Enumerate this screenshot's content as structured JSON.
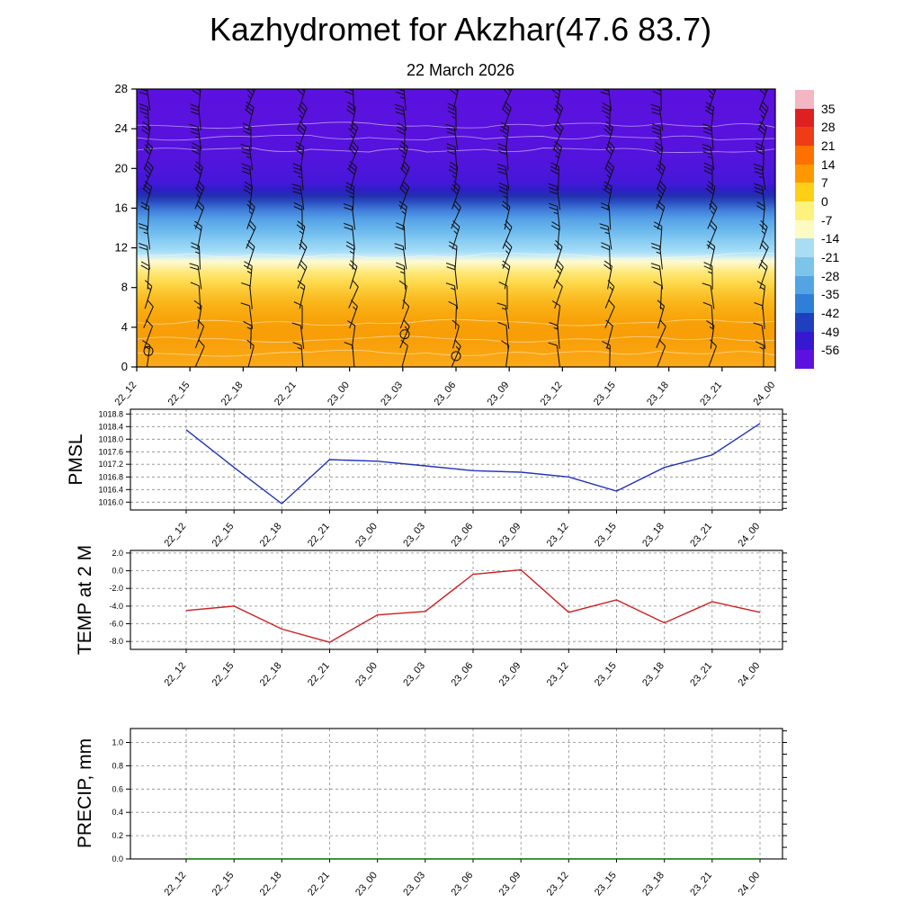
{
  "header": {
    "title": "Kazhydromet for Akzhar(47.6 83.7)",
    "subtitle": "22 March 2026"
  },
  "time_labels": [
    "22_12",
    "22_15",
    "22_18",
    "22_21",
    "23_00",
    "23_03",
    "23_06",
    "23_09",
    "23_12",
    "23_15",
    "23_18",
    "23_21",
    "24_00"
  ],
  "chart_data": [
    {
      "type": "heatmap",
      "name": "temperature-height-cross-section",
      "x": [
        "22_12",
        "22_15",
        "22_18",
        "22_21",
        "23_00",
        "23_03",
        "23_06",
        "23_09",
        "23_12",
        "23_15",
        "23_18",
        "23_21",
        "24_00"
      ],
      "ylabel": "",
      "yticks": [
        0,
        4,
        8,
        12,
        16,
        20,
        24,
        28
      ],
      "ylim": [
        0,
        28
      ],
      "legend_position": "right-colorbar",
      "colorbar_labels": [
        "35",
        "28",
        "21",
        "14",
        "7",
        "0",
        "-7",
        "-14",
        "-21",
        "-28",
        "-35",
        "-42",
        "-49",
        "-56"
      ],
      "colorbar_colors": [
        "#f3b6c3",
        "#df2020",
        "#ef3c14",
        "#fe7000",
        "#fe9800",
        "#fdd017",
        "#fef27e",
        "#fdfbc1",
        "#a9ddf3",
        "#7cc4ea",
        "#54a4e4",
        "#2f7fd8",
        "#1f3fbe",
        "#3617d2",
        "#5d11e0"
      ],
      "gradient_stops": [
        {
          "at": 0.0,
          "color": "#5b11df"
        },
        {
          "at": 0.16,
          "color": "#5912de"
        },
        {
          "at": 0.26,
          "color": "#5214dd"
        },
        {
          "at": 0.34,
          "color": "#4318d8"
        },
        {
          "at": 0.36,
          "color": "#2f1dc8"
        },
        {
          "at": 0.385,
          "color": "#2330b0"
        },
        {
          "at": 0.405,
          "color": "#2a4cc0"
        },
        {
          "at": 0.435,
          "color": "#3f7cda"
        },
        {
          "at": 0.47,
          "color": "#57a3e7"
        },
        {
          "at": 0.51,
          "color": "#6cb9ee"
        },
        {
          "at": 0.55,
          "color": "#8bcef2"
        },
        {
          "at": 0.585,
          "color": "#a6def6"
        },
        {
          "at": 0.6,
          "color": "#c6eaf8"
        },
        {
          "at": 0.612,
          "color": "#eef6da"
        },
        {
          "at": 0.622,
          "color": "#fdfad2"
        },
        {
          "at": 0.637,
          "color": "#fdf3ae"
        },
        {
          "at": 0.655,
          "color": "#feea80"
        },
        {
          "at": 0.69,
          "color": "#fedc52"
        },
        {
          "at": 0.725,
          "color": "#fcca34"
        },
        {
          "at": 0.76,
          "color": "#fab91e"
        },
        {
          "at": 0.8,
          "color": "#f9ab10"
        },
        {
          "at": 0.84,
          "color": "#f8a108"
        },
        {
          "at": 0.88,
          "color": "#f89d06"
        },
        {
          "at": 0.94,
          "color": "#f9a30e"
        },
        {
          "at": 1.0,
          "color": "#faaa1a"
        }
      ],
      "white_contour_fracs": [
        0.13,
        0.175,
        0.22,
        0.6,
        0.84,
        0.9,
        0.95
      ],
      "wind_barbs": {
        "columns": 13,
        "row_heights": [
          1,
          3,
          5,
          7,
          9,
          11,
          13,
          15,
          17,
          19,
          21,
          23,
          25,
          27
        ]
      },
      "calm_circles": [
        {
          "t": 0,
          "h": 1.6
        },
        {
          "t": 5,
          "h": 3.3
        },
        {
          "t": 6,
          "h": 1.1
        }
      ]
    },
    {
      "type": "line",
      "name": "pmsl",
      "ylabel": "PMSL",
      "color": "#2233bb",
      "categories": [
        "22_12",
        "22_15",
        "22_18",
        "22_21",
        "23_00",
        "23_03",
        "23_06",
        "23_09",
        "23_12",
        "23_15",
        "23_18",
        "23_21",
        "24_00"
      ],
      "values": [
        1018.3,
        1017.1,
        1015.95,
        1017.35,
        1017.3,
        1017.15,
        1017.0,
        1016.95,
        1016.8,
        1016.35,
        1017.1,
        1017.5,
        1018.5
      ],
      "yticks": [
        1016.0,
        1016.4,
        1016.8,
        1017.2,
        1017.6,
        1018.0,
        1018.4,
        1018.8
      ],
      "ydecimals": 1,
      "ylim": [
        1015.75,
        1018.95
      ],
      "grid": "dashed"
    },
    {
      "type": "line",
      "name": "temp-2m",
      "ylabel": "TEMP at 2 M",
      "color": "#cc2020",
      "categories": [
        "22_12",
        "22_15",
        "22_18",
        "22_21",
        "23_00",
        "23_03",
        "23_06",
        "23_09",
        "23_12",
        "23_15",
        "23_18",
        "23_21",
        "24_00"
      ],
      "values": [
        -4.5,
        -4.0,
        -6.6,
        -8.1,
        -5.0,
        -4.6,
        -0.4,
        0.1,
        -4.7,
        -3.3,
        -5.9,
        -3.5,
        -4.7
      ],
      "yticks": [
        -8.0,
        -6.0,
        -4.0,
        -2.0,
        0.0,
        2.0
      ],
      "ydecimals": 1,
      "ylim": [
        -8.9,
        2.3
      ],
      "grid": "dashed"
    },
    {
      "type": "line",
      "name": "precip",
      "ylabel": "PRECIP, mm",
      "color": "#067806",
      "categories": [
        "22_12",
        "22_15",
        "22_18",
        "22_21",
        "23_00",
        "23_03",
        "23_06",
        "23_09",
        "23_12",
        "23_15",
        "23_18",
        "23_21",
        "24_00"
      ],
      "values": [
        0,
        0,
        0,
        0,
        0,
        0,
        0,
        0,
        0,
        0,
        0,
        0,
        0
      ],
      "yticks": [
        0.0,
        0.2,
        0.4,
        0.6,
        0.8,
        1.0
      ],
      "ydecimals": 1,
      "ylim": [
        0,
        1.12
      ],
      "grid": "dashed"
    }
  ]
}
